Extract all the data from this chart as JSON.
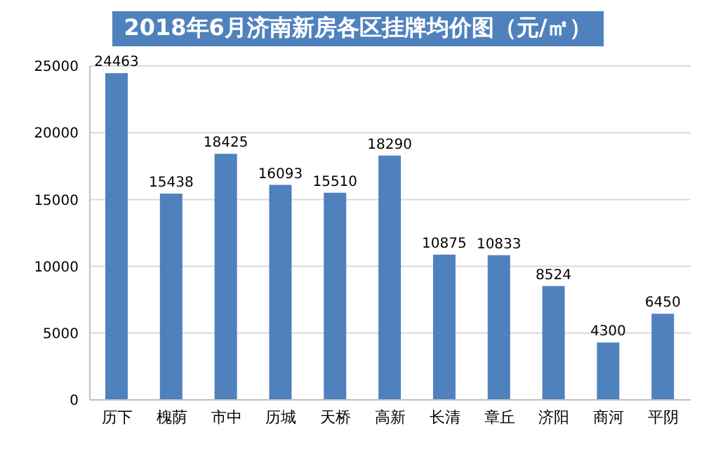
{
  "chart_data": {
    "type": "bar",
    "title": "2018年6月济南新房各区挂牌均价图（元/㎡）",
    "categories": [
      "历下",
      "槐荫",
      "市中",
      "历城",
      "天桥",
      "高新",
      "长清",
      "章丘",
      "济阳",
      "商河",
      "平阴"
    ],
    "values": [
      24463,
      15438,
      18425,
      16093,
      15510,
      18290,
      10875,
      10833,
      8524,
      4300,
      6450
    ],
    "color": "#4f81bd",
    "ylim": [
      0,
      25000
    ],
    "yticks": [
      0,
      5000,
      10000,
      15000,
      20000,
      25000
    ],
    "grid": "y",
    "data_labels": true,
    "legend": false
  }
}
